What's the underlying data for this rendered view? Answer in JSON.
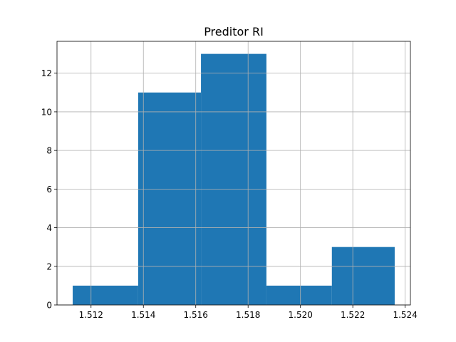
{
  "chart_data": {
    "type": "bar",
    "title": "Preditor RI",
    "xlabel": "",
    "ylabel": "",
    "bins": [
      {
        "start": 1.5113,
        "end": 1.5138,
        "count": 1
      },
      {
        "start": 1.5138,
        "end": 1.5162,
        "count": 11
      },
      {
        "start": 1.5162,
        "end": 1.5187,
        "count": 13
      },
      {
        "start": 1.5187,
        "end": 1.5212,
        "count": 1
      },
      {
        "start": 1.5212,
        "end": 1.5236,
        "count": 3
      }
    ],
    "xlim": [
      1.5107,
      1.5242
    ],
    "ylim": [
      0,
      13.65
    ],
    "x_ticks": [
      1.512,
      1.514,
      1.516,
      1.518,
      1.52,
      1.522,
      1.524
    ],
    "x_tick_labels": [
      "1.512",
      "1.514",
      "1.516",
      "1.518",
      "1.520",
      "1.522",
      "1.524"
    ],
    "y_ticks": [
      0,
      2,
      4,
      6,
      8,
      10,
      12
    ],
    "y_tick_labels": [
      "0",
      "2",
      "4",
      "6",
      "8",
      "10",
      "12"
    ],
    "grid": true,
    "bar_color": "#1f77b4",
    "grid_color": "#b0b0b0"
  }
}
